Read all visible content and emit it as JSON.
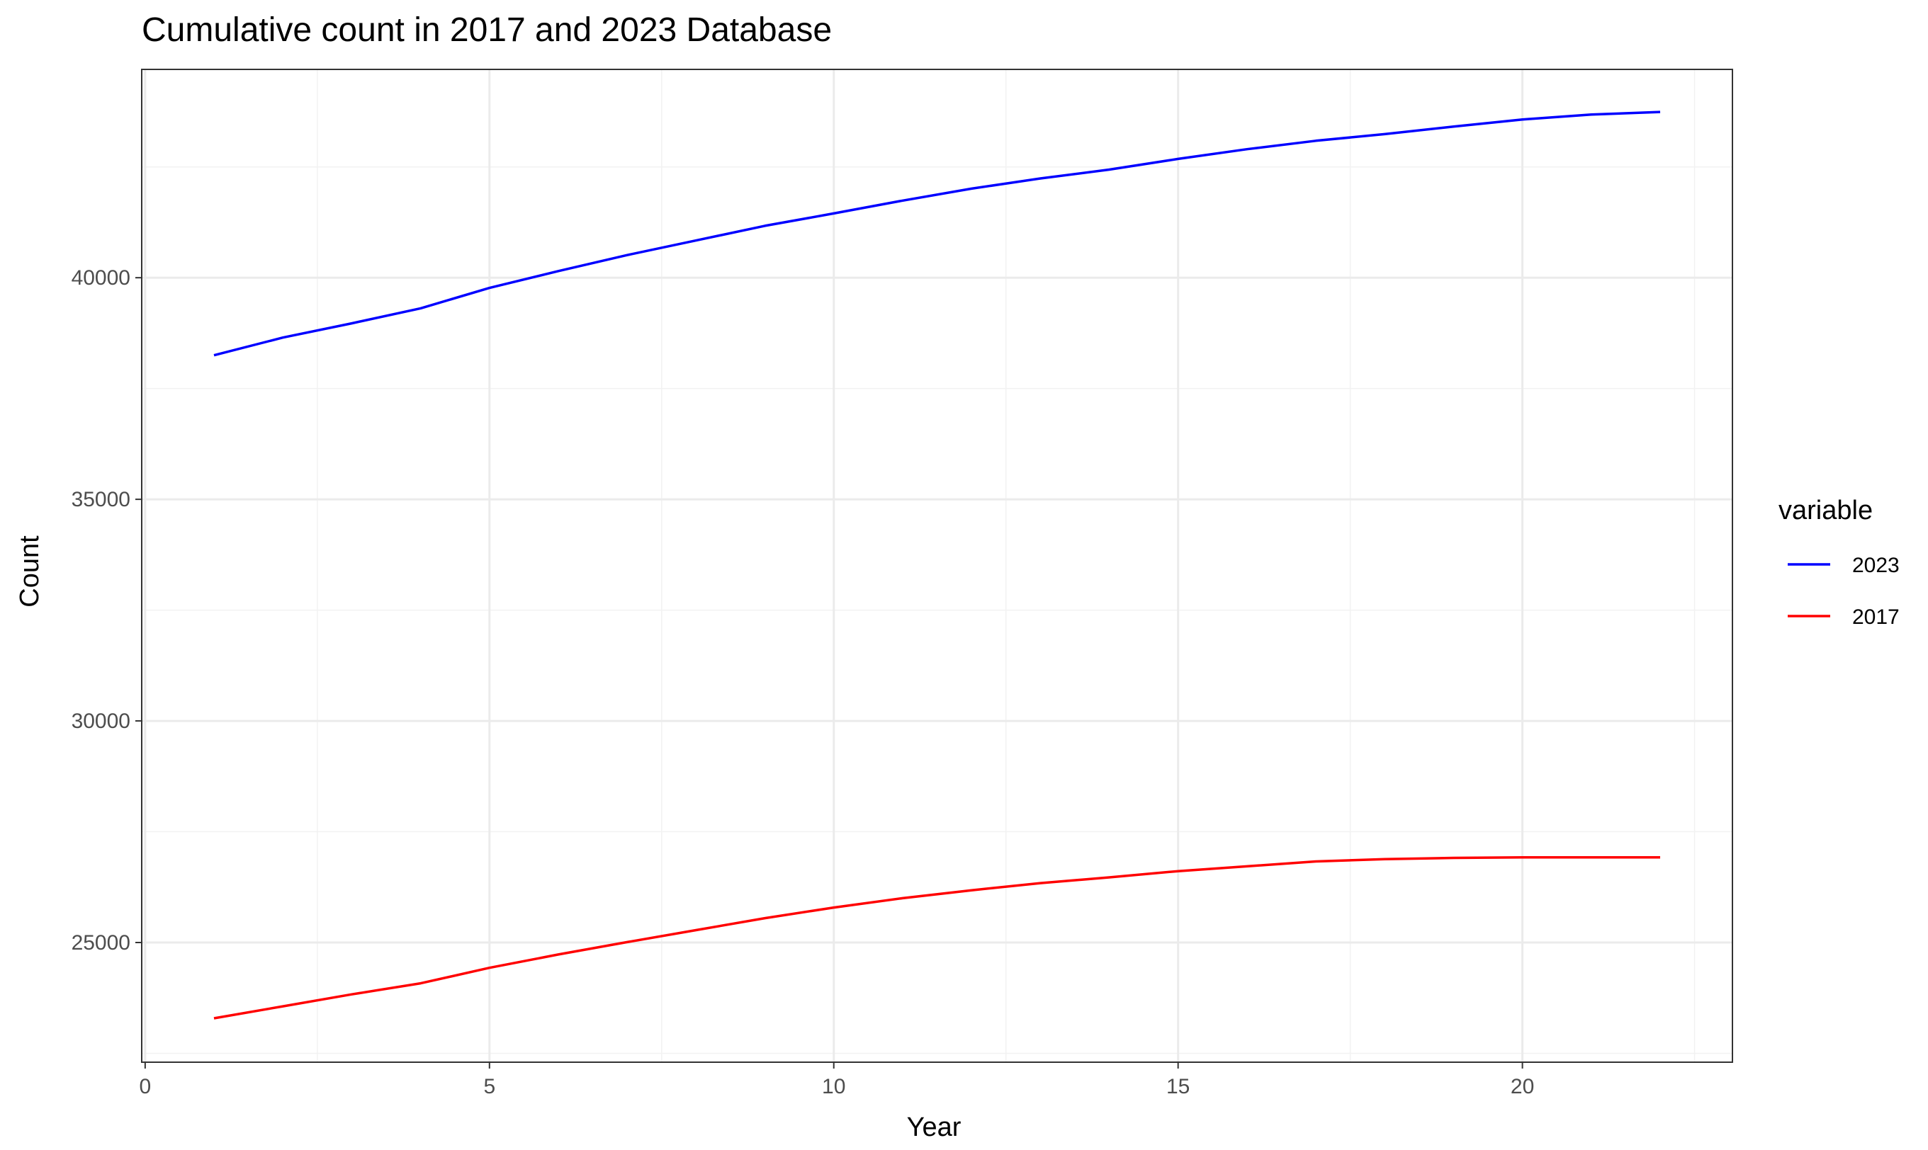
{
  "chart_data": {
    "type": "line",
    "title": "Cumulative count in 2017 and 2023 Database",
    "xlabel": "Year",
    "ylabel": "Count",
    "xlim": [
      -0.05,
      23.05
    ],
    "ylim": [
      22300,
      44700
    ],
    "x_ticks": [
      0,
      5,
      10,
      15,
      20
    ],
    "x_tick_labels": [
      "0",
      "5",
      "10",
      "15",
      "20"
    ],
    "y_ticks": [
      25000,
      30000,
      35000,
      40000
    ],
    "y_tick_labels": [
      "25000",
      "30000",
      "35000",
      "40000"
    ],
    "grid": true,
    "legend": {
      "title": "variable",
      "position": "right",
      "entries": [
        "2023",
        "2017"
      ]
    },
    "x": [
      1,
      2,
      3,
      4,
      5,
      6,
      7,
      8,
      9,
      10,
      11,
      12,
      13,
      14,
      15,
      16,
      17,
      18,
      19,
      20,
      21,
      22
    ],
    "series": [
      {
        "name": "2023",
        "color": "#0000ff",
        "values": [
          38250,
          38650,
          38970,
          39310,
          39770,
          40150,
          40510,
          40840,
          41170,
          41450,
          41740,
          42010,
          42240,
          42440,
          42680,
          42900,
          43090,
          43240,
          43410,
          43570,
          43680,
          43740
        ]
      },
      {
        "name": "2017",
        "color": "#ff0000",
        "values": [
          23290,
          23560,
          23830,
          24080,
          24430,
          24730,
          25010,
          25280,
          25550,
          25790,
          26000,
          26180,
          26340,
          26470,
          26610,
          26720,
          26830,
          26880,
          26910,
          26920,
          26920,
          26920
        ]
      }
    ]
  }
}
